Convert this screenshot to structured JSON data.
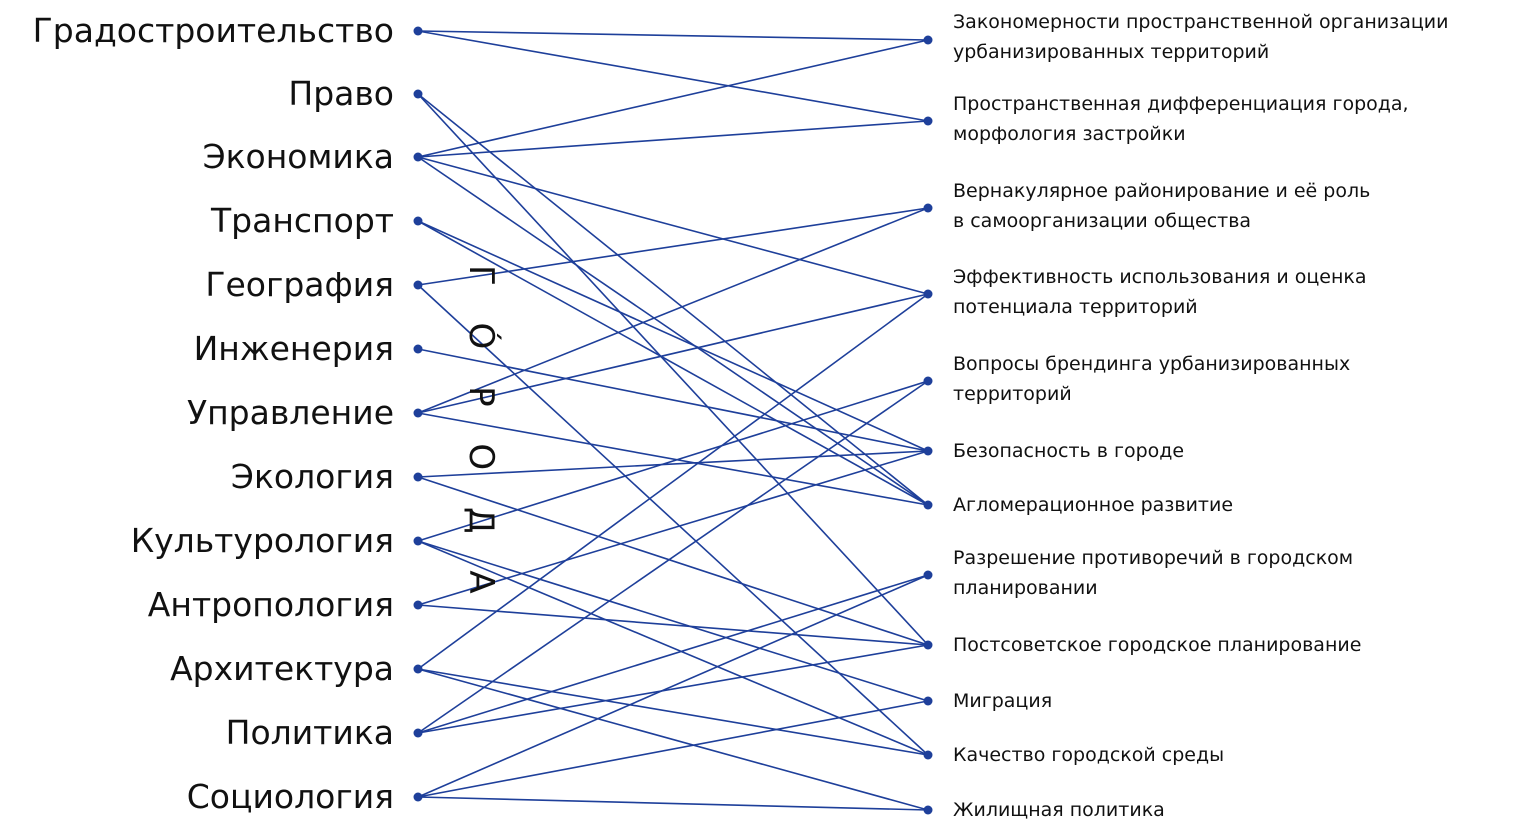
{
  "accent_color": "#1e3f9a",
  "vertical_word": "Г Ó Р О Д А",
  "disciplines": [
    "Градостроительство",
    "Право",
    "Экономика",
    "Транспорт",
    "География",
    "Инженерия",
    "Управление",
    "Экология",
    "Культурология",
    "Антропология",
    "Архитектура",
    "Политика",
    "Социология"
  ],
  "topics": [
    [
      "Закономерности пространственной организации",
      "урбанизированных территорий"
    ],
    [
      "Пространственная дифференциация города,",
      "морфология застройки"
    ],
    [
      "Вернакулярное районирование и её роль",
      "в самоорганизации общества"
    ],
    [
      "Эффективность использования и оценка",
      "потенциала территорий"
    ],
    [
      "Вопросы брендинга урбанизированных",
      "территорий"
    ],
    [
      "Безопасность в городе"
    ],
    [
      "Агломерационное развитие"
    ],
    [
      "Разрешение противоречий в городском",
      "планировании"
    ],
    [
      "Постсоветское городское планирование"
    ],
    [
      "Миграция"
    ],
    [
      "Качество городской среды"
    ],
    [
      "Жилищная политика"
    ]
  ],
  "connections": [
    [
      "Градостроительство",
      "Закономерности пространственной организации урбанизированных территорий"
    ],
    [
      "Градостроительство",
      "Пространственная дифференциация города, морфология застройки"
    ],
    [
      "Право",
      "Агломерационное развитие"
    ],
    [
      "Право",
      "Постсоветское городское планирование"
    ],
    [
      "Экономика",
      "Закономерности пространственной организации урбанизированных территорий"
    ],
    [
      "Экономика",
      "Пространственная дифференциация города, морфология застройки"
    ],
    [
      "Экономика",
      "Эффективность использования и оценка потенциала территорий"
    ],
    [
      "Экономика",
      "Агломерационное развитие"
    ],
    [
      "Транспорт",
      "Безопасность в городе"
    ],
    [
      "Транспорт",
      "Агломерационное развитие"
    ],
    [
      "География",
      "Вернакулярное районирование и её роль в самоорганизации общества"
    ],
    [
      "География",
      "Качество городской среды"
    ],
    [
      "Инженерия",
      "Безопасность в городе"
    ],
    [
      "Управление",
      "Вернакулярное районирование и её роль в самоорганизации общества"
    ],
    [
      "Управление",
      "Эффективность использования и оценка потенциала территорий"
    ],
    [
      "Управление",
      "Агломерационное развитие"
    ],
    [
      "Экология",
      "Безопасность в городе"
    ],
    [
      "Экология",
      "Постсоветское городское планирование"
    ],
    [
      "Культурология",
      "Вопросы брендинга урбанизированных территорий"
    ],
    [
      "Культурология",
      "Миграция"
    ],
    [
      "Культурология",
      "Качество городской среды"
    ],
    [
      "Антропология",
      "Безопасность в городе"
    ],
    [
      "Антропология",
      "Постсоветское городское планирование"
    ],
    [
      "Архитектура",
      "Эффективность использования и оценка потенциала территорий"
    ],
    [
      "Архитектура",
      "Качество городской среды"
    ],
    [
      "Архитектура",
      "Жилищная политика"
    ],
    [
      "Политика",
      "Вопросы брендинга урбанизированных территорий"
    ],
    [
      "Политика",
      "Разрешение противоречий в городском планировании"
    ],
    [
      "Политика",
      "Постсоветское городское планирование"
    ],
    [
      "Социология",
      "Разрешение противоречий в городском планировании"
    ],
    [
      "Социология",
      "Миграция"
    ],
    [
      "Социология",
      "Жилищная политика"
    ]
  ]
}
